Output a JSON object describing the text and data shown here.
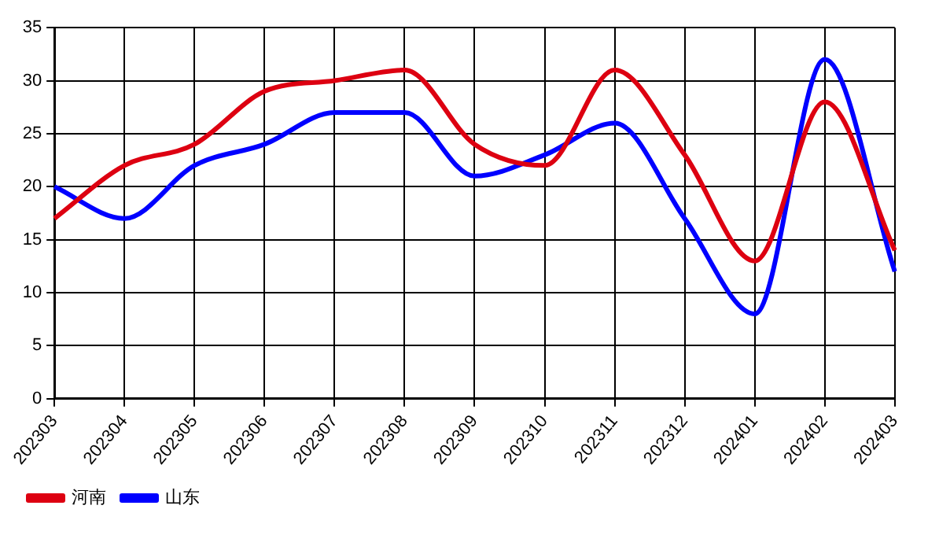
{
  "chart_data": {
    "type": "line",
    "categories": [
      "202303",
      "202304",
      "202305",
      "202306",
      "202307",
      "202308",
      "202309",
      "202310",
      "202311",
      "202312",
      "202401",
      "202402",
      "202403"
    ],
    "series": [
      {
        "name": "河南",
        "color": "#dd0011",
        "values": [
          17,
          22,
          24,
          29,
          30,
          31,
          24,
          22,
          31,
          23,
          13,
          28,
          14
        ]
      },
      {
        "name": "山东",
        "color": "#0000ff",
        "values": [
          20,
          17,
          22,
          24,
          27,
          27,
          21,
          23,
          26,
          17,
          8,
          32,
          12
        ]
      }
    ],
    "ylim": [
      0,
      35
    ],
    "yticks": [
      0,
      5,
      10,
      15,
      20,
      25,
      30,
      35
    ],
    "grid": true,
    "legend": "bottom left",
    "marker": "none",
    "line_style": "solid"
  }
}
